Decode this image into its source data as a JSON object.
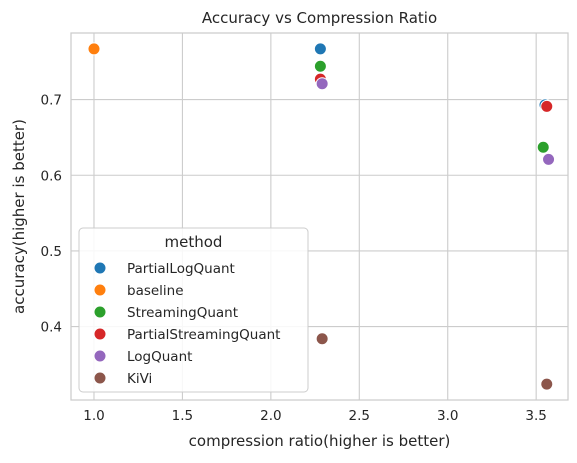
{
  "chart_data": {
    "type": "scatter",
    "title": "Accuracy vs Compression Ratio",
    "xlabel": "compression ratio(higher is better)",
    "ylabel": "accuracy(higher is better)",
    "xlim": [
      0.87,
      3.68
    ],
    "ylim": [
      0.303,
      0.788
    ],
    "xticks": [
      1.0,
      1.5,
      2.0,
      2.5,
      3.0,
      3.5
    ],
    "xtick_labels": [
      "1.0",
      "1.5",
      "2.0",
      "2.5",
      "3.0",
      "3.5"
    ],
    "yticks": [
      0.4,
      0.5,
      0.6,
      0.7
    ],
    "ytick_labels": [
      "0.4",
      "0.5",
      "0.6",
      "0.7"
    ],
    "grid": true,
    "legend": {
      "title": "method",
      "position": "lower-left"
    },
    "series": [
      {
        "name": "PartialLogQuant",
        "color": "#1f77b4",
        "points": [
          [
            2.28,
            0.767
          ],
          [
            3.55,
            0.693
          ]
        ]
      },
      {
        "name": "baseline",
        "color": "#ff7f0e",
        "points": [
          [
            1.0,
            0.767
          ]
        ]
      },
      {
        "name": "StreamingQuant",
        "color": "#2ca02c",
        "points": [
          [
            2.28,
            0.744
          ],
          [
            3.54,
            0.637
          ]
        ]
      },
      {
        "name": "PartialStreamingQuant",
        "color": "#d62728",
        "points": [
          [
            2.28,
            0.727
          ],
          [
            3.56,
            0.691
          ]
        ]
      },
      {
        "name": "LogQuant",
        "color": "#9467bd",
        "points": [
          [
            2.29,
            0.721
          ],
          [
            3.57,
            0.621
          ]
        ]
      },
      {
        "name": "KiVi",
        "color": "#8c564b",
        "points": [
          [
            2.29,
            0.384
          ],
          [
            3.56,
            0.324
          ]
        ]
      }
    ]
  }
}
